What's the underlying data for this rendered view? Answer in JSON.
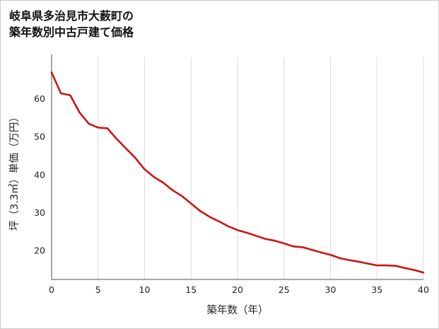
{
  "title": {
    "line1": "岐阜県多治見市大薮町の",
    "line2": "築年数別中古戸建て価格"
  },
  "chart_data": {
    "type": "line",
    "title": "岐阜県多治見市大薮町の築年数別中古戸建て価格",
    "xlabel": "築年数（年）",
    "ylabel": "坪（3.3㎡）単価（万円）",
    "x": [
      0,
      1,
      2,
      3,
      4,
      5,
      6,
      7,
      8,
      9,
      10,
      11,
      12,
      13,
      14,
      15,
      16,
      17,
      18,
      19,
      20,
      21,
      22,
      23,
      24,
      25,
      26,
      27,
      28,
      29,
      30,
      31,
      32,
      33,
      34,
      35,
      36,
      37,
      38,
      39,
      40
    ],
    "values": [
      67,
      61.5,
      61,
      56.5,
      53.5,
      52.5,
      52.3,
      49.5,
      47,
      44.5,
      41.5,
      39.5,
      38,
      36,
      34.5,
      32.5,
      30.5,
      29,
      27.8,
      26.5,
      25.5,
      24.8,
      24,
      23.2,
      22.7,
      22,
      21.2,
      21,
      20.3,
      19.6,
      19,
      18.1,
      17.6,
      17.2,
      16.7,
      16.2,
      16.2,
      16.1,
      15.5,
      15,
      14.3
    ],
    "xlim": [
      0,
      40
    ],
    "ylim": [
      12.5,
      69.5
    ],
    "xticks": [
      0,
      5,
      10,
      15,
      20,
      25,
      30,
      35,
      40
    ],
    "yticks": [
      20,
      30,
      40,
      50,
      60
    ],
    "grid": "vertical-only",
    "legend": "none",
    "line_color": "#cc1414",
    "grid_color": "#dcdcdc",
    "axis_color": "#a6a6a6",
    "text_color": "#222222"
  }
}
